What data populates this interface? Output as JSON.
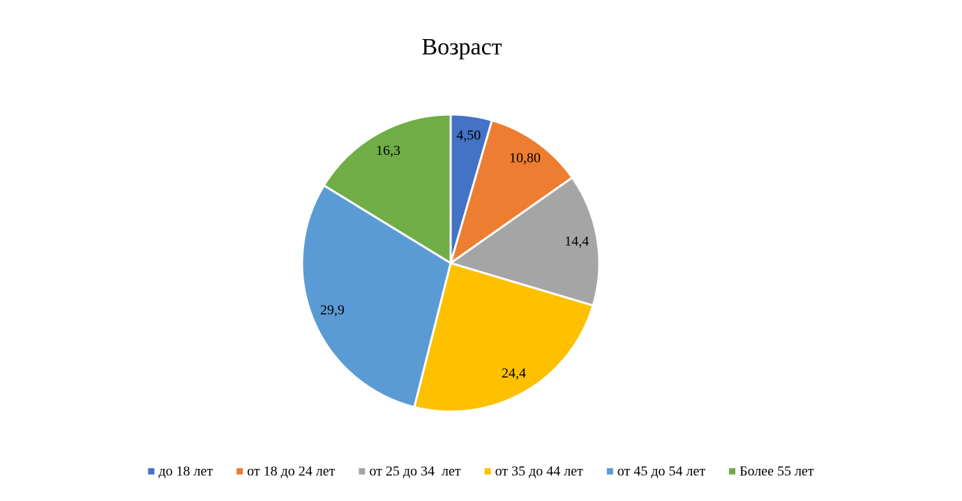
{
  "chart_data": {
    "type": "pie",
    "title": "Возраст",
    "categories": [
      "до 18 лет",
      "от 18 до 24 лет",
      "от 25 до 34  лет",
      "от 35 до 44 лет",
      "от 45 до 54 лет",
      "Более 55 лет"
    ],
    "values": [
      4.5,
      10.8,
      14.4,
      24.4,
      29.9,
      16.3
    ],
    "value_labels": [
      "4,50",
      "10,80",
      "14,4",
      "24,4",
      "29,9",
      "16,3"
    ],
    "colors": [
      "#4472c4",
      "#ed7d31",
      "#a5a5a5",
      "#ffc000",
      "#5b9bd5",
      "#70ad47"
    ],
    "legend": "bottom"
  }
}
